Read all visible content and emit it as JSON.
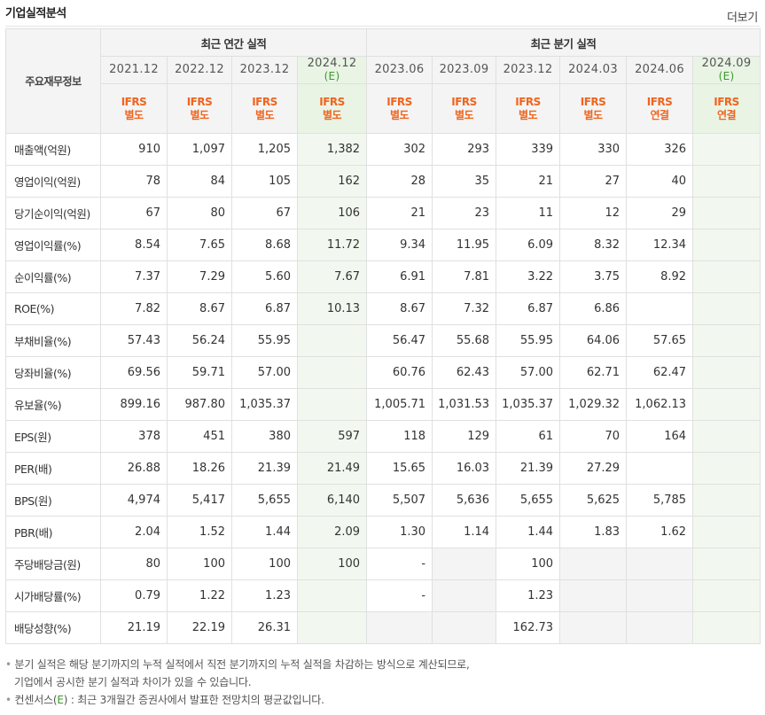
{
  "header": {
    "title": "기업실적분석",
    "more_label": "더보기"
  },
  "table": {
    "row_header_label": "주요재무정보",
    "groups": {
      "annual": "최근 연간 실적",
      "quarterly": "최근 분기 실적"
    },
    "periods": [
      "2021.12",
      "2022.12",
      "2023.12",
      "2024.12",
      "2023.06",
      "2023.09",
      "2023.12",
      "2024.03",
      "2024.06",
      "2024.09"
    ],
    "estimate_tag": "(E)",
    "ifrs_top": "IFRS",
    "ifrs_types": [
      "별도",
      "별도",
      "별도",
      "별도",
      "별도",
      "별도",
      "별도",
      "별도",
      "연결",
      "연결"
    ],
    "rows": [
      {
        "label": "매출액(억원)",
        "values": [
          "910",
          "1,097",
          "1,205",
          "1,382",
          "302",
          "293",
          "339",
          "330",
          "326",
          ""
        ]
      },
      {
        "label": "영업이익(억원)",
        "values": [
          "78",
          "84",
          "105",
          "162",
          "28",
          "35",
          "21",
          "27",
          "40",
          ""
        ]
      },
      {
        "label": "당기순이익(억원)",
        "values": [
          "67",
          "80",
          "67",
          "106",
          "21",
          "23",
          "11",
          "12",
          "29",
          ""
        ]
      },
      {
        "label": "영업이익률(%)",
        "values": [
          "8.54",
          "7.65",
          "8.68",
          "11.72",
          "9.34",
          "11.95",
          "6.09",
          "8.32",
          "12.34",
          ""
        ]
      },
      {
        "label": "순이익률(%)",
        "values": [
          "7.37",
          "7.29",
          "5.60",
          "7.67",
          "6.91",
          "7.81",
          "3.22",
          "3.75",
          "8.92",
          ""
        ]
      },
      {
        "label": "ROE(%)",
        "values": [
          "7.82",
          "8.67",
          "6.87",
          "10.13",
          "8.67",
          "7.32",
          "6.87",
          "6.86",
          "",
          ""
        ]
      },
      {
        "label": "부채비율(%)",
        "values": [
          "57.43",
          "56.24",
          "55.95",
          "",
          "56.47",
          "55.68",
          "55.95",
          "64.06",
          "57.65",
          ""
        ]
      },
      {
        "label": "당좌비율(%)",
        "values": [
          "69.56",
          "59.71",
          "57.00",
          "",
          "60.76",
          "62.43",
          "57.00",
          "62.71",
          "62.47",
          ""
        ]
      },
      {
        "label": "유보율(%)",
        "values": [
          "899.16",
          "987.80",
          "1,035.37",
          "",
          "1,005.71",
          "1,031.53",
          "1,035.37",
          "1,029.32",
          "1,062.13",
          ""
        ]
      },
      {
        "label": "EPS(원)",
        "values": [
          "378",
          "451",
          "380",
          "597",
          "118",
          "129",
          "61",
          "70",
          "164",
          ""
        ]
      },
      {
        "label": "PER(배)",
        "values": [
          "26.88",
          "18.26",
          "21.39",
          "21.49",
          "15.65",
          "16.03",
          "21.39",
          "27.29",
          "",
          ""
        ]
      },
      {
        "label": "BPS(원)",
        "values": [
          "4,974",
          "5,417",
          "5,655",
          "6,140",
          "5,507",
          "5,636",
          "5,655",
          "5,625",
          "5,785",
          ""
        ]
      },
      {
        "label": "PBR(배)",
        "values": [
          "2.04",
          "1.52",
          "1.44",
          "2.09",
          "1.30",
          "1.14",
          "1.44",
          "1.83",
          "1.62",
          ""
        ]
      },
      {
        "label": "주당배당금(원)",
        "values": [
          "80",
          "100",
          "100",
          "100",
          "-",
          "",
          "100",
          "",
          "",
          ""
        ]
      },
      {
        "label": "시가배당률(%)",
        "values": [
          "0.79",
          "1.22",
          "1.23",
          "",
          "-",
          "",
          "1.23",
          "",
          "",
          ""
        ]
      },
      {
        "label": "배당성향(%)",
        "values": [
          "21.19",
          "22.19",
          "26.31",
          "",
          "",
          "",
          "162.73",
          "",
          "",
          ""
        ]
      }
    ]
  },
  "notes": {
    "line1": "분기 실적은 해당 분기까지의 누적 실적에서 직전 분기까지의 누적 실적을 차감하는 방식으로 계산되므로,",
    "line2": "기업에서 공시한 분기 실적과 차이가 있을 수 있습니다.",
    "line3_prefix": "컨센서스(",
    "line3_e": "E",
    "line3_suffix": ") : 최근 3개월간 증권사에서 발표한 전망치의 평균값입니다."
  }
}
